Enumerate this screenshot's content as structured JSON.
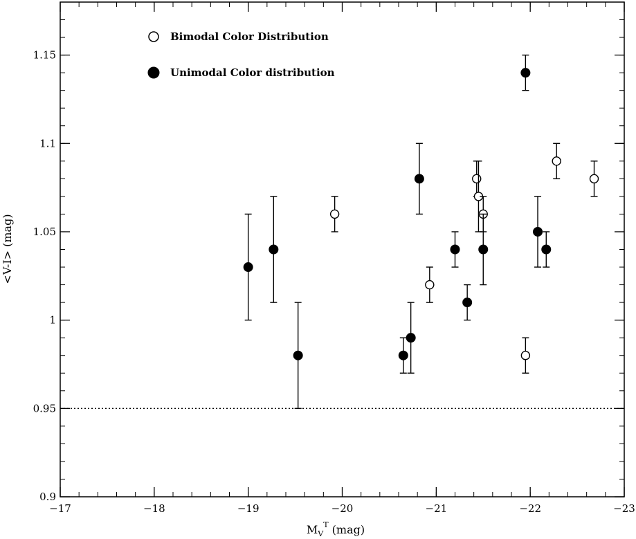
{
  "chart_data": {
    "type": "scatter",
    "title": "",
    "xlabel_main": "M",
    "xlabel_sub": "V",
    "xlabel_sup": "T",
    "xlabel_rest": " (mag)",
    "ylabel": "<V-I> (mag)",
    "xlim": [
      -17,
      -23
    ],
    "ylim": [
      0.9,
      1.18
    ],
    "x_ticks": [
      -17,
      -18,
      -19,
      -20,
      -21,
      -22,
      -23
    ],
    "x_tick_labels": [
      "−17",
      "−18",
      "−19",
      "−20",
      "−21",
      "−22",
      "−23"
    ],
    "y_ticks": [
      0.9,
      0.95,
      1,
      1.05,
      1.1,
      1.15
    ],
    "y_tick_labels": [
      "0.9",
      "0.95",
      "1",
      "1.05",
      "1.1",
      "1.15"
    ],
    "reference_line": {
      "y": 0.95,
      "style": "dotted"
    },
    "legend": [
      {
        "label": "Bimodal Color Distribution",
        "marker": "open-circle"
      },
      {
        "label": "Unimodal Color distribution",
        "marker": "filled-circle"
      }
    ],
    "series": [
      {
        "name": "Bimodal Color Distribution",
        "marker": "open-circle",
        "points": [
          {
            "x": -19.92,
            "y": 1.06,
            "err": 0.01
          },
          {
            "x": -20.93,
            "y": 1.02,
            "err": 0.01
          },
          {
            "x": -21.43,
            "y": 1.08,
            "err": 0.01
          },
          {
            "x": -21.45,
            "y": 1.07,
            "err": 0.02
          },
          {
            "x": -21.5,
            "y": 1.06,
            "err": 0.01
          },
          {
            "x": -21.95,
            "y": 0.98,
            "err": 0.01
          },
          {
            "x": -22.28,
            "y": 1.09,
            "err": 0.01
          },
          {
            "x": -22.68,
            "y": 1.08,
            "err": 0.01
          }
        ]
      },
      {
        "name": "Unimodal Color distribution",
        "marker": "filled-circle",
        "points": [
          {
            "x": -19.0,
            "y": 1.03,
            "err": 0.03
          },
          {
            "x": -19.27,
            "y": 1.04,
            "err": 0.03
          },
          {
            "x": -19.53,
            "y": 0.98,
            "err": 0.03
          },
          {
            "x": -20.65,
            "y": 0.98,
            "err": 0.01
          },
          {
            "x": -20.73,
            "y": 0.99,
            "err": 0.02
          },
          {
            "x": -20.82,
            "y": 1.08,
            "err": 0.02
          },
          {
            "x": -21.2,
            "y": 1.04,
            "err": 0.01
          },
          {
            "x": -21.33,
            "y": 1.01,
            "err": 0.01
          },
          {
            "x": -21.5,
            "y": 1.04,
            "err": 0.02
          },
          {
            "x": -21.95,
            "y": 1.14,
            "err": 0.01
          },
          {
            "x": -22.08,
            "y": 1.05,
            "err": 0.02
          },
          {
            "x": -22.17,
            "y": 1.04,
            "err": 0.01
          }
        ]
      }
    ]
  }
}
